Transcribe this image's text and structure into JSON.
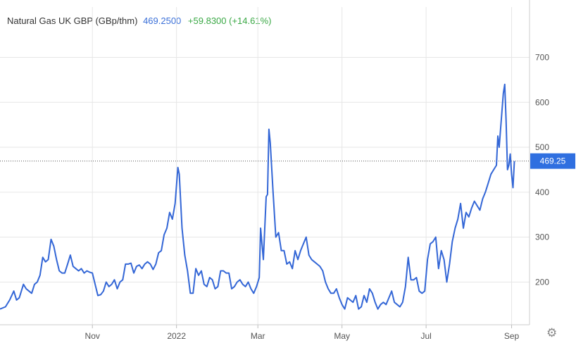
{
  "legend": {
    "name": "Natural Gas UK GBP (GBp/thm)",
    "last": "469.2500",
    "change": "+59.8300 (+14.61%)"
  },
  "colors": {
    "line": "#3366d6",
    "badge": "#2f6fe0",
    "grid": "#e6e6e6",
    "change": "#3aa845"
  },
  "icons": {
    "settings": "gear-icon"
  },
  "chart_data": {
    "type": "line",
    "title": "",
    "xlabel": "",
    "ylabel": "",
    "ylim": [
      105,
      765
    ],
    "yticks": [
      200,
      300,
      400,
      500,
      600,
      700
    ],
    "grid": true,
    "y_axis_side": "right",
    "x_tick_labels": [
      "Nov",
      "2022",
      "Mar",
      "May",
      "Jul",
      "Sep"
    ],
    "x_tick_dates": [
      "2021-11-01",
      "2022-01-01",
      "2022-03-01",
      "2022-05-01",
      "2022-07-01",
      "2022-09-01"
    ],
    "x_range": [
      "2021-08-26",
      "2022-09-14"
    ],
    "last_value": 469.25,
    "last_value_label": "469.25",
    "series": [
      {
        "values": [
          [
            "2021-08-26",
            140
          ],
          [
            "2021-08-30",
            145
          ],
          [
            "2021-09-02",
            160
          ],
          [
            "2021-09-05",
            180
          ],
          [
            "2021-09-07",
            160
          ],
          [
            "2021-09-09",
            165
          ],
          [
            "2021-09-12",
            195
          ],
          [
            "2021-09-14",
            185
          ],
          [
            "2021-09-16",
            180
          ],
          [
            "2021-09-18",
            175
          ],
          [
            "2021-09-20",
            195
          ],
          [
            "2021-09-22",
            200
          ],
          [
            "2021-09-24",
            215
          ],
          [
            "2021-09-26",
            255
          ],
          [
            "2021-09-28",
            245
          ],
          [
            "2021-09-30",
            250
          ],
          [
            "2021-10-02",
            295
          ],
          [
            "2021-10-04",
            280
          ],
          [
            "2021-10-06",
            250
          ],
          [
            "2021-10-08",
            225
          ],
          [
            "2021-10-10",
            220
          ],
          [
            "2021-10-12",
            220
          ],
          [
            "2021-10-14",
            240
          ],
          [
            "2021-10-16",
            260
          ],
          [
            "2021-10-18",
            235
          ],
          [
            "2021-10-20",
            230
          ],
          [
            "2021-10-22",
            225
          ],
          [
            "2021-10-24",
            230
          ],
          [
            "2021-10-26",
            220
          ],
          [
            "2021-10-28",
            225
          ],
          [
            "2021-10-30",
            222
          ],
          [
            "2021-11-01",
            220
          ],
          [
            "2021-11-03",
            195
          ],
          [
            "2021-11-05",
            170
          ],
          [
            "2021-11-07",
            172
          ],
          [
            "2021-11-09",
            180
          ],
          [
            "2021-11-11",
            200
          ],
          [
            "2021-11-13",
            190
          ],
          [
            "2021-11-15",
            195
          ],
          [
            "2021-11-17",
            205
          ],
          [
            "2021-11-19",
            185
          ],
          [
            "2021-11-21",
            200
          ],
          [
            "2021-11-23",
            205
          ],
          [
            "2021-11-25",
            240
          ],
          [
            "2021-11-27",
            240
          ],
          [
            "2021-11-29",
            242
          ],
          [
            "2021-12-01",
            220
          ],
          [
            "2021-12-03",
            235
          ],
          [
            "2021-12-05",
            238
          ],
          [
            "2021-12-07",
            230
          ],
          [
            "2021-12-09",
            240
          ],
          [
            "2021-12-11",
            245
          ],
          [
            "2021-12-13",
            240
          ],
          [
            "2021-12-15",
            228
          ],
          [
            "2021-12-17",
            240
          ],
          [
            "2021-12-19",
            265
          ],
          [
            "2021-12-21",
            270
          ],
          [
            "2021-12-23",
            305
          ],
          [
            "2021-12-25",
            320
          ],
          [
            "2021-12-27",
            355
          ],
          [
            "2021-12-29",
            340
          ],
          [
            "2021-12-31",
            375
          ],
          [
            "2022-01-02",
            455
          ],
          [
            "2022-01-03",
            440
          ],
          [
            "2022-01-05",
            320
          ],
          [
            "2022-01-07",
            260
          ],
          [
            "2022-01-09",
            225
          ],
          [
            "2022-01-11",
            175
          ],
          [
            "2022-01-13",
            175
          ],
          [
            "2022-01-15",
            230
          ],
          [
            "2022-01-17",
            215
          ],
          [
            "2022-01-19",
            225
          ],
          [
            "2022-01-21",
            195
          ],
          [
            "2022-01-23",
            190
          ],
          [
            "2022-01-25",
            210
          ],
          [
            "2022-01-27",
            205
          ],
          [
            "2022-01-29",
            185
          ],
          [
            "2022-01-31",
            190
          ],
          [
            "2022-02-02",
            225
          ],
          [
            "2022-02-04",
            225
          ],
          [
            "2022-02-06",
            220
          ],
          [
            "2022-02-08",
            220
          ],
          [
            "2022-02-10",
            185
          ],
          [
            "2022-02-12",
            190
          ],
          [
            "2022-02-14",
            200
          ],
          [
            "2022-02-16",
            205
          ],
          [
            "2022-02-18",
            195
          ],
          [
            "2022-02-20",
            190
          ],
          [
            "2022-02-22",
            200
          ],
          [
            "2022-02-24",
            185
          ],
          [
            "2022-02-26",
            175
          ],
          [
            "2022-02-28",
            190
          ],
          [
            "2022-03-02",
            210
          ],
          [
            "2022-03-03",
            320
          ],
          [
            "2022-03-05",
            250
          ],
          [
            "2022-03-07",
            390
          ],
          [
            "2022-03-08",
            395
          ],
          [
            "2022-03-09",
            540
          ],
          [
            "2022-03-10",
            510
          ],
          [
            "2022-03-12",
            400
          ],
          [
            "2022-03-14",
            300
          ],
          [
            "2022-03-16",
            310
          ],
          [
            "2022-03-18",
            270
          ],
          [
            "2022-03-20",
            270
          ],
          [
            "2022-03-22",
            240
          ],
          [
            "2022-03-24",
            245
          ],
          [
            "2022-03-26",
            230
          ],
          [
            "2022-03-28",
            270
          ],
          [
            "2022-03-30",
            250
          ],
          [
            "2022-04-01",
            270
          ],
          [
            "2022-04-03",
            285
          ],
          [
            "2022-04-05",
            300
          ],
          [
            "2022-04-07",
            260
          ],
          [
            "2022-04-09",
            250
          ],
          [
            "2022-04-11",
            245
          ],
          [
            "2022-04-13",
            240
          ],
          [
            "2022-04-15",
            235
          ],
          [
            "2022-04-17",
            225
          ],
          [
            "2022-04-19",
            200
          ],
          [
            "2022-04-21",
            185
          ],
          [
            "2022-04-23",
            175
          ],
          [
            "2022-04-25",
            175
          ],
          [
            "2022-04-27",
            185
          ],
          [
            "2022-04-29",
            165
          ],
          [
            "2022-05-01",
            150
          ],
          [
            "2022-05-03",
            140
          ],
          [
            "2022-05-05",
            165
          ],
          [
            "2022-05-07",
            160
          ],
          [
            "2022-05-09",
            155
          ],
          [
            "2022-05-11",
            170
          ],
          [
            "2022-05-13",
            140
          ],
          [
            "2022-05-15",
            145
          ],
          [
            "2022-05-17",
            170
          ],
          [
            "2022-05-19",
            155
          ],
          [
            "2022-05-21",
            185
          ],
          [
            "2022-05-23",
            175
          ],
          [
            "2022-05-25",
            155
          ],
          [
            "2022-05-27",
            140
          ],
          [
            "2022-05-29",
            150
          ],
          [
            "2022-05-31",
            155
          ],
          [
            "2022-06-02",
            150
          ],
          [
            "2022-06-04",
            165
          ],
          [
            "2022-06-06",
            180
          ],
          [
            "2022-06-08",
            155
          ],
          [
            "2022-06-10",
            150
          ],
          [
            "2022-06-12",
            145
          ],
          [
            "2022-06-14",
            155
          ],
          [
            "2022-06-16",
            190
          ],
          [
            "2022-06-18",
            255
          ],
          [
            "2022-06-20",
            205
          ],
          [
            "2022-06-22",
            205
          ],
          [
            "2022-06-24",
            210
          ],
          [
            "2022-06-26",
            180
          ],
          [
            "2022-06-28",
            175
          ],
          [
            "2022-06-30",
            180
          ],
          [
            "2022-07-02",
            250
          ],
          [
            "2022-07-04",
            285
          ],
          [
            "2022-07-06",
            290
          ],
          [
            "2022-07-08",
            300
          ],
          [
            "2022-07-10",
            230
          ],
          [
            "2022-07-12",
            270
          ],
          [
            "2022-07-14",
            250
          ],
          [
            "2022-07-16",
            200
          ],
          [
            "2022-07-18",
            240
          ],
          [
            "2022-07-20",
            290
          ],
          [
            "2022-07-22",
            320
          ],
          [
            "2022-07-24",
            340
          ],
          [
            "2022-07-26",
            375
          ],
          [
            "2022-07-28",
            320
          ],
          [
            "2022-07-30",
            355
          ],
          [
            "2022-08-01",
            345
          ],
          [
            "2022-08-03",
            365
          ],
          [
            "2022-08-05",
            380
          ],
          [
            "2022-08-07",
            370
          ],
          [
            "2022-08-09",
            360
          ],
          [
            "2022-08-11",
            385
          ],
          [
            "2022-08-13",
            400
          ],
          [
            "2022-08-15",
            420
          ],
          [
            "2022-08-17",
            440
          ],
          [
            "2022-08-19",
            450
          ],
          [
            "2022-08-21",
            460
          ],
          [
            "2022-08-22",
            525
          ],
          [
            "2022-08-23",
            500
          ],
          [
            "2022-08-26",
            620
          ],
          [
            "2022-08-27",
            640
          ],
          [
            "2022-08-28",
            560
          ],
          [
            "2022-08-29",
            450
          ],
          [
            "2022-08-30",
            460
          ],
          [
            "2022-08-31",
            485
          ],
          [
            "2022-09-01",
            440
          ],
          [
            "2022-09-02",
            410
          ],
          [
            "2022-09-03",
            469.25
          ]
        ]
      }
    ]
  }
}
